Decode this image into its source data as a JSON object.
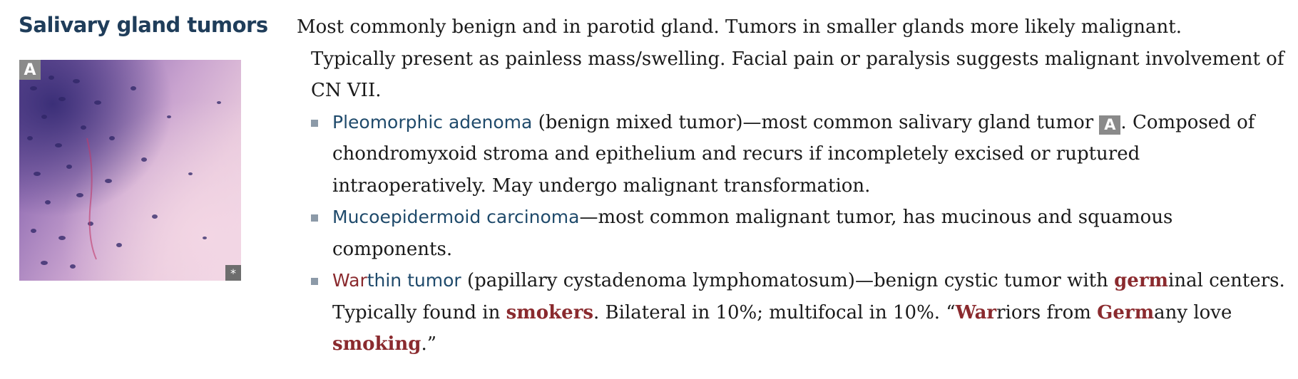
{
  "heading": "Salivary gland tumors",
  "figure": {
    "label": "A",
    "mark": "*"
  },
  "intro": {
    "line1": "Most commonly benign and in parotid gland. Tumors in smaller glands more likely malignant.",
    "line2": "Typically present as painless mass/swelling. Facial pain or paralysis suggests malignant involvement of CN VII."
  },
  "bullets": [
    {
      "term": "Pleomorphic adenoma",
      "text_before": " (benign mixed tumor)—most common salivary gland tumor ",
      "ref": "A",
      "text_after": ". Composed of chondromyxoid stroma and epithelium and recurs if incompletely excised or ruptured intraoperatively. May undergo malignant transformation."
    },
    {
      "term": "Mucoepidermoid carcinoma",
      "text": "—most common malignant tumor, has mucinous and squamous components."
    },
    {
      "term_war": "War",
      "term_rest": "thin tumor",
      "t1": " (papillary cystadenoma lymphomatosum)—benign cystic tumor with ",
      "germ": "germ",
      "t2": "inal centers. Typically found in ",
      "smokers": "smokers",
      "t3": ". Bilateral in 10%; multifocal in 10%. “",
      "war": "War",
      "t4": "riors from ",
      "germ2": "Germ",
      "t5": "any love ",
      "smoking": "smoking",
      "t6": ".”"
    }
  ]
}
